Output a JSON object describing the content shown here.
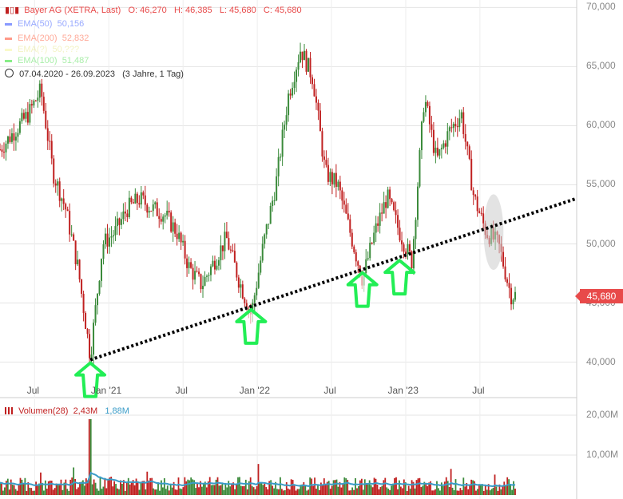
{
  "legend": {
    "title": "Bayer AG (XETRA, Last)",
    "o": "O: 46,270",
    "h": "H: 46,385",
    "l": "L: 45,680",
    "c": "C: 45,680",
    "ema50": "EMA(50)",
    "ema50_val": "50,156",
    "ema200": "EMA(200)",
    "ema200_val": "52,832",
    "ema3_label": "EMA(?)",
    "ema3_val": "50,???",
    "ema100": "EMA(100)",
    "ema100_val": "51,487",
    "range": "07.04.2020 - 26.09.2023",
    "range_note": "(3 Jahre, 1 Tag)"
  },
  "last_price_label": "45,680",
  "volume_legend": {
    "label": "Volumen(28)",
    "v1": "2,43M",
    "v2": "1,88M"
  },
  "colors": {
    "up": "#3a8a3a",
    "down": "#c02020",
    "trendline": "#000000",
    "arrow": "#22ee55",
    "highlight": "#cccccc",
    "last_price_bg": "#e84a4a",
    "volume_ma": "#3a9cc8",
    "ema50": "#8899ff",
    "ema200": "#ff9988",
    "ema100": "#88ee88"
  },
  "chart_data": [
    {
      "type": "line",
      "series_type": "candlestick",
      "x_tick_labels": [
        "Jul",
        "Jan '21",
        "Jul",
        "Jan '22",
        "Jul",
        "Jan '23",
        "Jul"
      ],
      "y_tick_labels": [
        "70,000",
        "65,000",
        "60,000",
        "55,000",
        "50,000",
        "45,000",
        "40,000"
      ],
      "ylim": [
        37,
        70.5
      ],
      "x": [
        "2020-06",
        "2020-07",
        "2020-08",
        "2020-09",
        "2020-10",
        "2020-11",
        "2020-12",
        "2021-01",
        "2021-02",
        "2021-03",
        "2021-04",
        "2021-05",
        "2021-06",
        "2021-07",
        "2021-08",
        "2021-09",
        "2021-10",
        "2021-11",
        "2021-12",
        "2022-01",
        "2022-02",
        "2022-03",
        "2022-04",
        "2022-05",
        "2022-06",
        "2022-07",
        "2022-08",
        "2022-09",
        "2022-10",
        "2022-11",
        "2022-12",
        "2023-01",
        "2023-02",
        "2023-03",
        "2023-04",
        "2023-05",
        "2023-06",
        "2023-07",
        "2023-08",
        "2023-09"
      ],
      "values": [
        61,
        63,
        56,
        53,
        48,
        40.5,
        50,
        51,
        53,
        53.8,
        53,
        52.5,
        51,
        48,
        46.5,
        48.5,
        50.5,
        47,
        44,
        50,
        55,
        62.5,
        66.5,
        64,
        56,
        55,
        51,
        47,
        51,
        54,
        51,
        48.5,
        62.5,
        57,
        59.5,
        61,
        54,
        51,
        50,
        45.68
      ],
      "annotations": {
        "trendline": [
          [
            "2020-11",
            40.2
          ],
          [
            "2023-09",
            52
          ]
        ],
        "arrow_points": [
          "2020-11",
          "2021-12",
          "2022-09",
          "2022-12"
        ],
        "highlight_region": [
          "2023-07",
          "2023-08"
        ]
      }
    },
    {
      "type": "bar",
      "name": "Volumen(28)",
      "y_tick_labels": [
        "20,00M",
        "10,00M"
      ],
      "ylim": [
        0,
        22
      ]
    }
  ]
}
